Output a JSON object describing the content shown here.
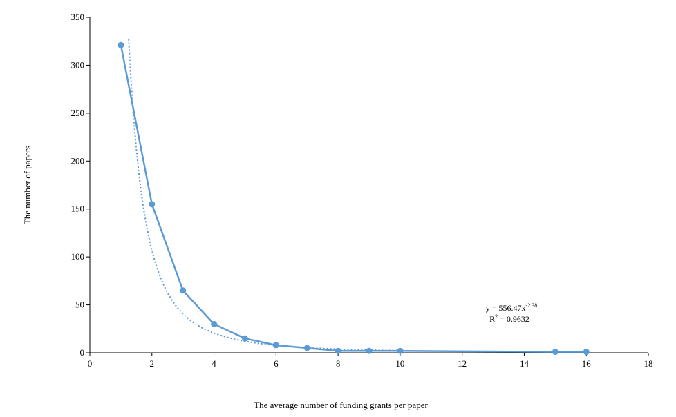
{
  "chart_data": {
    "type": "line",
    "title": "",
    "xlabel": "The average number of funding grants per paper",
    "ylabel": "The number of papers",
    "xlim": [
      0,
      18
    ],
    "ylim": [
      0,
      350
    ],
    "xticks": [
      0,
      2,
      4,
      6,
      8,
      10,
      12,
      14,
      16,
      18
    ],
    "yticks": [
      0,
      50,
      100,
      150,
      200,
      250,
      300,
      350
    ],
    "grid": false,
    "series": [
      {
        "color": "#5b9bd5",
        "marker": "circle",
        "x": [
          1,
          2,
          3,
          4,
          5,
          6,
          7,
          8,
          9,
          10,
          15,
          16
        ],
        "y": [
          321,
          155,
          65,
          30,
          15,
          8,
          5,
          2,
          2,
          2,
          1,
          1
        ]
      }
    ],
    "trendline": {
      "type": "power",
      "coefficient": 556.47,
      "exponent": -2.38,
      "style": "dotted",
      "color": "#5b9bd5",
      "equation_text": "y = 556.47x",
      "equation_exponent": "-2.38",
      "r2_prefix": "R",
      "r2_sup": "2",
      "r2_text": " = 0.9632"
    }
  }
}
